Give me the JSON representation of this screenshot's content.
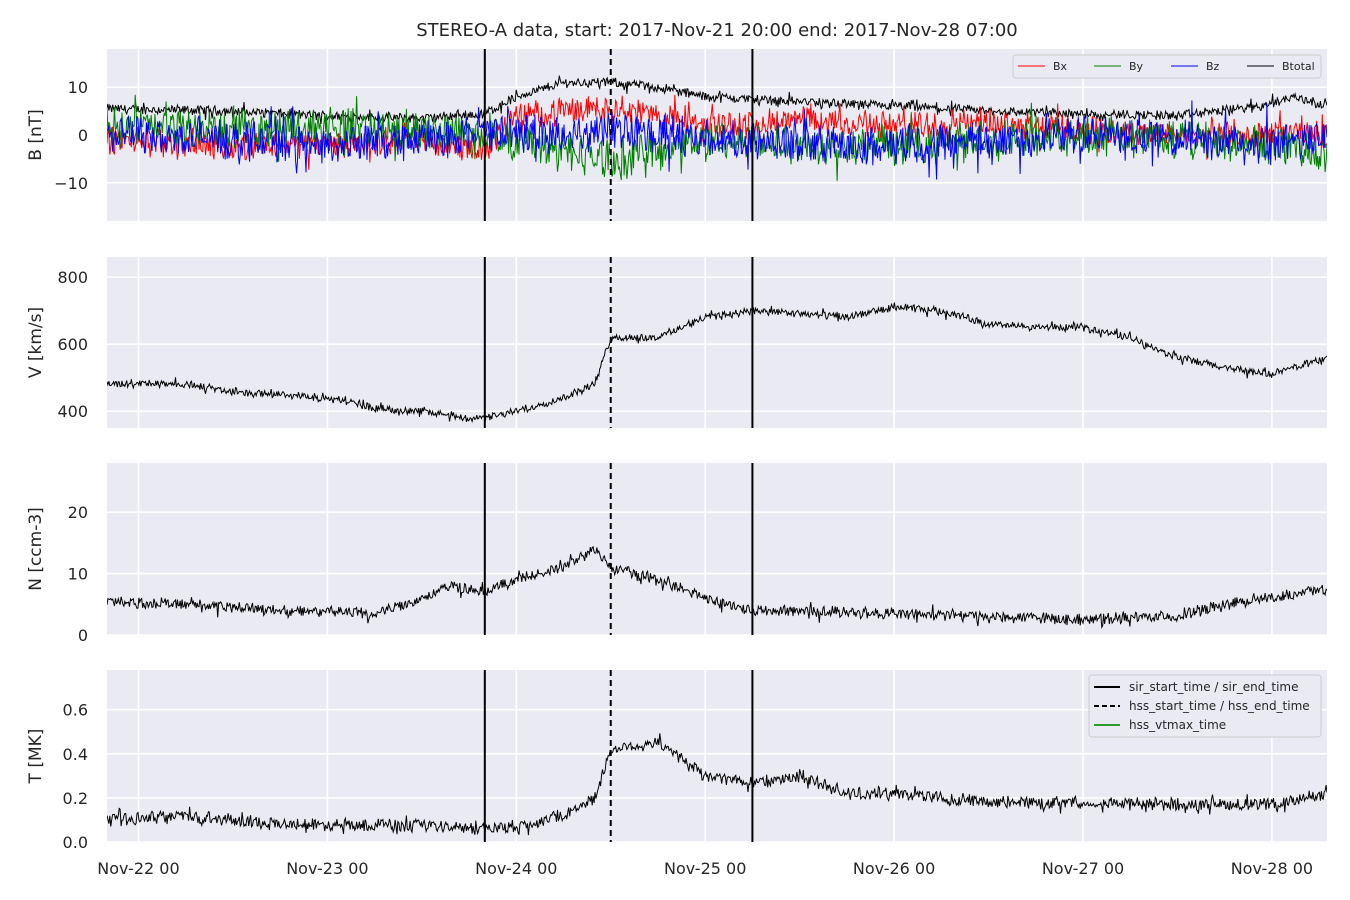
{
  "title": "STEREO-A data, start: 2017-Nov-21 20:00  end: 2017-Nov-28 07:00",
  "colors": {
    "panel_bg": "#eaeaf2",
    "grid": "#ffffff",
    "bx": "#ff0000",
    "by": "#008000",
    "bz": "#0000ff",
    "btotal": "#000000",
    "marker": "#000000",
    "vtmax": "#2ca02c"
  },
  "chart_data": {
    "type": "line",
    "x_axis": {
      "start": "2017-11-21 20:00",
      "end": "2017-11-28 07:00",
      "tick_labels": [
        "Nov-22 00",
        "Nov-23 00",
        "Nov-24 00",
        "Nov-25 00",
        "Nov-26 00",
        "Nov-27 00",
        "Nov-28 00"
      ],
      "tick_times": [
        "2017-11-22 00:00",
        "2017-11-23 00:00",
        "2017-11-24 00:00",
        "2017-11-25 00:00",
        "2017-11-26 00:00",
        "2017-11-27 00:00",
        "2017-11-28 00:00"
      ]
    },
    "markers": {
      "sir_start_time": "2017-11-23 20:00",
      "hss_start_time": "2017-11-24 12:00",
      "sir_end_time": "2017-11-25 06:00"
    },
    "panels": [
      {
        "ylabel": "B [nT]",
        "ylim": [
          -18,
          18
        ],
        "yticks": [
          -10,
          0,
          10
        ],
        "ytick_labels": [
          "−10",
          "0",
          "10"
        ],
        "legend": [
          "Bx",
          "By",
          "Bz",
          "Btotal"
        ],
        "series": [
          {
            "name": "Btotal",
            "color": "#000000",
            "noise": 0.9,
            "points": [
              [
                "2017-11-21 20:00",
                5.5
              ],
              [
                "2017-11-22 12:00",
                5
              ],
              [
                "2017-11-23 00:00",
                4
              ],
              [
                "2017-11-23 12:00",
                3.5
              ],
              [
                "2017-11-23 20:00",
                4.5
              ],
              [
                "2017-11-24 00:00",
                8
              ],
              [
                "2017-11-24 06:00",
                11
              ],
              [
                "2017-11-24 12:00",
                11
              ],
              [
                "2017-11-24 18:00",
                10
              ],
              [
                "2017-11-25 00:00",
                8
              ],
              [
                "2017-11-25 12:00",
                7
              ],
              [
                "2017-11-26 00:00",
                6
              ],
              [
                "2017-11-26 12:00",
                5
              ],
              [
                "2017-11-27 00:00",
                4.5
              ],
              [
                "2017-11-27 12:00",
                4
              ],
              [
                "2017-11-27 22:00",
                6
              ],
              [
                "2017-11-28 03:00",
                8
              ],
              [
                "2017-11-28 07:00",
                6
              ]
            ]
          },
          {
            "name": "Bx",
            "color": "#ff0000",
            "noise": 2.5,
            "points": [
              [
                "2017-11-21 20:00",
                -1
              ],
              [
                "2017-11-22 12:00",
                -2
              ],
              [
                "2017-11-23 00:00",
                -2
              ],
              [
                "2017-11-23 12:00",
                -1
              ],
              [
                "2017-11-23 20:00",
                -3
              ],
              [
                "2017-11-24 00:00",
                4
              ],
              [
                "2017-11-24 12:00",
                6
              ],
              [
                "2017-11-25 00:00",
                2
              ],
              [
                "2017-11-25 12:00",
                3
              ],
              [
                "2017-11-26 00:00",
                2
              ],
              [
                "2017-11-26 12:00",
                3
              ],
              [
                "2017-11-27 00:00",
                1
              ],
              [
                "2017-11-27 12:00",
                0
              ],
              [
                "2017-11-28 07:00",
                0
              ]
            ]
          },
          {
            "name": "By",
            "color": "#008000",
            "noise": 3.5,
            "points": [
              [
                "2017-11-21 20:00",
                2
              ],
              [
                "2017-11-22 12:00",
                1
              ],
              [
                "2017-11-23 00:00",
                2
              ],
              [
                "2017-11-23 12:00",
                1
              ],
              [
                "2017-11-23 20:00",
                0
              ],
              [
                "2017-11-24 06:00",
                -3
              ],
              [
                "2017-11-24 12:00",
                -5
              ],
              [
                "2017-11-25 00:00",
                -1
              ],
              [
                "2017-11-25 12:00",
                -2
              ],
              [
                "2017-11-26 00:00",
                -2
              ],
              [
                "2017-11-26 12:00",
                -1
              ],
              [
                "2017-11-27 00:00",
                0
              ],
              [
                "2017-11-27 12:00",
                -1
              ],
              [
                "2017-11-28 00:00",
                -2
              ],
              [
                "2017-11-28 07:00",
                -4
              ]
            ]
          },
          {
            "name": "Bz",
            "color": "#0000ff",
            "noise": 3.5,
            "points": [
              [
                "2017-11-21 20:00",
                0
              ],
              [
                "2017-11-22 12:00",
                -1
              ],
              [
                "2017-11-23 00:00",
                -2
              ],
              [
                "2017-11-23 12:00",
                -1
              ],
              [
                "2017-11-23 20:00",
                1
              ],
              [
                "2017-11-24 06:00",
                0
              ],
              [
                "2017-11-24 12:00",
                1
              ],
              [
                "2017-11-25 00:00",
                -1
              ],
              [
                "2017-11-25 12:00",
                -2
              ],
              [
                "2017-11-26 00:00",
                -2
              ],
              [
                "2017-11-26 12:00",
                -1
              ],
              [
                "2017-11-27 00:00",
                0
              ],
              [
                "2017-11-27 12:00",
                -1
              ],
              [
                "2017-11-28 00:00",
                -2
              ],
              [
                "2017-11-28 07:00",
                0
              ]
            ]
          }
        ]
      },
      {
        "ylabel": "V [km/s]",
        "ylim": [
          350,
          860
        ],
        "yticks": [
          400,
          600,
          800
        ],
        "ytick_labels": [
          "400",
          "600",
          "800"
        ],
        "series": [
          {
            "name": "V",
            "color": "#000000",
            "noise": 10,
            "points": [
              [
                "2017-11-21 20:00",
                480
              ],
              [
                "2017-11-22 00:00",
                485
              ],
              [
                "2017-11-22 06:00",
                480
              ],
              [
                "2017-11-22 12:00",
                460
              ],
              [
                "2017-11-23 00:00",
                440
              ],
              [
                "2017-11-23 06:00",
                410
              ],
              [
                "2017-11-23 12:00",
                400
              ],
              [
                "2017-11-23 18:00",
                380
              ],
              [
                "2017-11-23 20:00",
                378
              ],
              [
                "2017-11-24 00:00",
                400
              ],
              [
                "2017-11-24 06:00",
                440
              ],
              [
                "2017-11-24 10:00",
                480
              ],
              [
                "2017-11-24 12:00",
                620
              ],
              [
                "2017-11-24 18:00",
                620
              ],
              [
                "2017-11-25 00:00",
                680
              ],
              [
                "2017-11-25 06:00",
                700
              ],
              [
                "2017-11-25 12:00",
                690
              ],
              [
                "2017-11-25 18:00",
                680
              ],
              [
                "2017-11-26 00:00",
                710
              ],
              [
                "2017-11-26 06:00",
                700
              ],
              [
                "2017-11-26 12:00",
                660
              ],
              [
                "2017-11-26 18:00",
                650
              ],
              [
                "2017-11-27 00:00",
                650
              ],
              [
                "2017-11-27 06:00",
                620
              ],
              [
                "2017-11-27 12:00",
                560
              ],
              [
                "2017-11-27 18:00",
                530
              ],
              [
                "2017-11-28 00:00",
                510
              ],
              [
                "2017-11-28 07:00",
                560
              ]
            ]
          }
        ]
      },
      {
        "ylabel": "N [ccm-3]",
        "ylim": [
          0,
          28
        ],
        "yticks": [
          0,
          10,
          20
        ],
        "ytick_labels": [
          "0",
          "10",
          "20"
        ],
        "series": [
          {
            "name": "N",
            "color": "#000000",
            "noise": 0.8,
            "points": [
              [
                "2017-11-21 20:00",
                5.5
              ],
              [
                "2017-11-22 06:00",
                5
              ],
              [
                "2017-11-22 18:00",
                4
              ],
              [
                "2017-11-23 06:00",
                3.5
              ],
              [
                "2017-11-23 12:00",
                6
              ],
              [
                "2017-11-23 16:00",
                8
              ],
              [
                "2017-11-23 20:00",
                7
              ],
              [
                "2017-11-24 00:00",
                9
              ],
              [
                "2017-11-24 06:00",
                11
              ],
              [
                "2017-11-24 10:00",
                14
              ],
              [
                "2017-11-24 12:00",
                11
              ],
              [
                "2017-11-24 18:00",
                9
              ],
              [
                "2017-11-25 00:00",
                6
              ],
              [
                "2017-11-25 06:00",
                4
              ],
              [
                "2017-11-25 12:00",
                4
              ],
              [
                "2017-11-26 00:00",
                3.5
              ],
              [
                "2017-11-26 12:00",
                3
              ],
              [
                "2017-11-27 00:00",
                2.5
              ],
              [
                "2017-11-27 12:00",
                3
              ],
              [
                "2017-11-27 18:00",
                5
              ],
              [
                "2017-11-28 00:00",
                6
              ],
              [
                "2017-11-28 07:00",
                7.5
              ]
            ]
          }
        ]
      },
      {
        "ylabel": "T [MK]",
        "ylim": [
          0,
          0.78
        ],
        "yticks": [
          0.0,
          0.2,
          0.4,
          0.6
        ],
        "ytick_labels": [
          "0.0",
          "0.2",
          "0.4",
          "0.6"
        ],
        "legend": [
          "sir_start_time / sir_end_time",
          "hss_start_time / hss_end_time",
          "hss_vtmax_time"
        ],
        "series": [
          {
            "name": "T",
            "color": "#000000",
            "noise": 0.025,
            "points": [
              [
                "2017-11-21 20:00",
                0.1
              ],
              [
                "2017-11-22 06:00",
                0.12
              ],
              [
                "2017-11-22 18:00",
                0.08
              ],
              [
                "2017-11-23 06:00",
                0.08
              ],
              [
                "2017-11-23 20:00",
                0.06
              ],
              [
                "2017-11-24 00:00",
                0.07
              ],
              [
                "2017-11-24 06:00",
                0.12
              ],
              [
                "2017-11-24 10:00",
                0.2
              ],
              [
                "2017-11-24 12:00",
                0.42
              ],
              [
                "2017-11-24 18:00",
                0.45
              ],
              [
                "2017-11-25 00:00",
                0.3
              ],
              [
                "2017-11-25 06:00",
                0.27
              ],
              [
                "2017-11-25 12:00",
                0.3
              ],
              [
                "2017-11-25 18:00",
                0.22
              ],
              [
                "2017-11-26 00:00",
                0.22
              ],
              [
                "2017-11-26 12:00",
                0.18
              ],
              [
                "2017-11-27 00:00",
                0.18
              ],
              [
                "2017-11-27 12:00",
                0.17
              ],
              [
                "2017-11-28 00:00",
                0.17
              ],
              [
                "2017-11-28 07:00",
                0.22
              ]
            ]
          }
        ]
      }
    ]
  }
}
